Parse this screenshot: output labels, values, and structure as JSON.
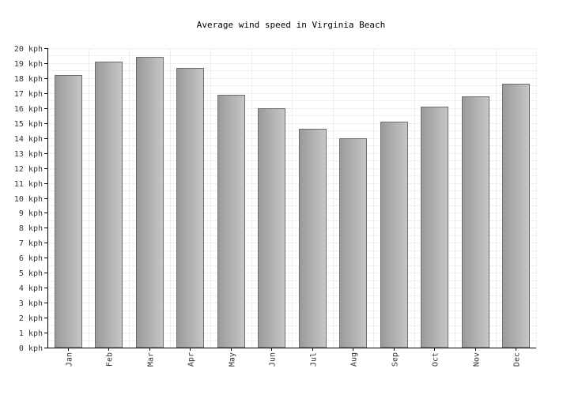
{
  "chart_data": {
    "type": "bar",
    "title": "Average wind speed in Virginia Beach",
    "xlabel": "",
    "ylabel": "",
    "y_unit": "kph",
    "ylim": [
      0,
      20
    ],
    "y_ticks": [
      "0 kph",
      "1 kph",
      "2 kph",
      "3 kph",
      "4 kph",
      "5 kph",
      "6 kph",
      "7 kph",
      "8 kph",
      "9 kph",
      "10 kph",
      "11 kph",
      "12 kph",
      "13 kph",
      "14 kph",
      "15 kph",
      "16 kph",
      "17 kph",
      "18 kph",
      "19 kph",
      "20 kph"
    ],
    "categories": [
      "Jan",
      "Feb",
      "Mar",
      "Apr",
      "May",
      "Jun",
      "Jul",
      "Aug",
      "Sep",
      "Oct",
      "Nov",
      "Dec"
    ],
    "values": [
      18.2,
      19.1,
      19.4,
      18.7,
      16.9,
      16.0,
      14.6,
      14.0,
      15.1,
      16.1,
      16.8,
      17.6
    ],
    "grid": true,
    "bar_color": "#aaaaaa"
  }
}
